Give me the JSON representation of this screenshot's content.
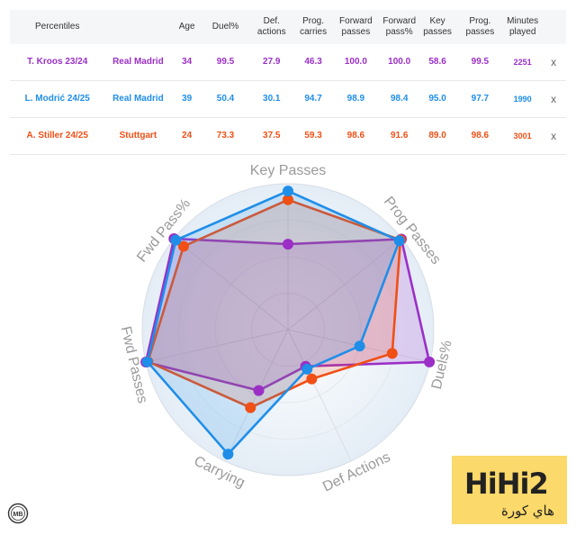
{
  "table": {
    "headers": [
      "Percentiles",
      "",
      "Age",
      "Duel%",
      "Def. actions",
      "Prog. carries",
      "Forward passes",
      "Forward pass%",
      "Key passes",
      "Prog. passes",
      "Minutes played"
    ],
    "rows": [
      {
        "player": "T. Kroos 23/24",
        "team": "Real Madrid",
        "age": "34",
        "duel": "99.5",
        "def": "27.9",
        "carry": "46.3",
        "fwd": "100.0",
        "fwdpct": "100.0",
        "key": "58.6",
        "prog": "99.5",
        "minutes": "2251",
        "remove": "x"
      },
      {
        "player": "L. Modrić 24/25",
        "team": "Real Madrid",
        "age": "39",
        "duel": "50.4",
        "def": "30.1",
        "carry": "94.7",
        "fwd": "98.9",
        "fwdpct": "98.4",
        "key": "95.0",
        "prog": "97.7",
        "minutes": "1990",
        "remove": "x"
      },
      {
        "player": "A. Stiller 24/25",
        "team": "Stuttgart",
        "age": "24",
        "duel": "73.3",
        "def": "37.5",
        "carry": "59.3",
        "fwd": "98.6",
        "fwdpct": "91.6",
        "key": "89.0",
        "prog": "98.6",
        "minutes": "3001",
        "remove": "x"
      }
    ]
  },
  "colors": {
    "kroos": "#9b2fc6",
    "modric": "#1f8ee8",
    "stiller": "#f04f15"
  },
  "chart_data": {
    "type": "radar",
    "axes": [
      "Key Passes",
      "Prog Passes",
      "Duels%",
      "Def Actions",
      "Carrying",
      "Fwd Passes",
      "Fwd Pass%"
    ],
    "range": [
      0,
      100
    ],
    "series": [
      {
        "name": "T. Kroos 23/24",
        "color": "#9b2fc6",
        "values": [
          58.6,
          99.5,
          99.5,
          27.9,
          46.3,
          100.0,
          100.0
        ]
      },
      {
        "name": "L. Modrić 24/25",
        "color": "#1f8ee8",
        "values": [
          95.0,
          97.7,
          50.4,
          30.1,
          94.7,
          98.9,
          98.4
        ]
      },
      {
        "name": "A. Stiller 24/25",
        "color": "#f04f15",
        "values": [
          89.0,
          98.6,
          73.3,
          37.5,
          59.3,
          98.6,
          91.6
        ]
      }
    ]
  },
  "watermark": {
    "title": "HiHi2",
    "subtitle": "هاي كورة",
    "logo": "MB"
  }
}
